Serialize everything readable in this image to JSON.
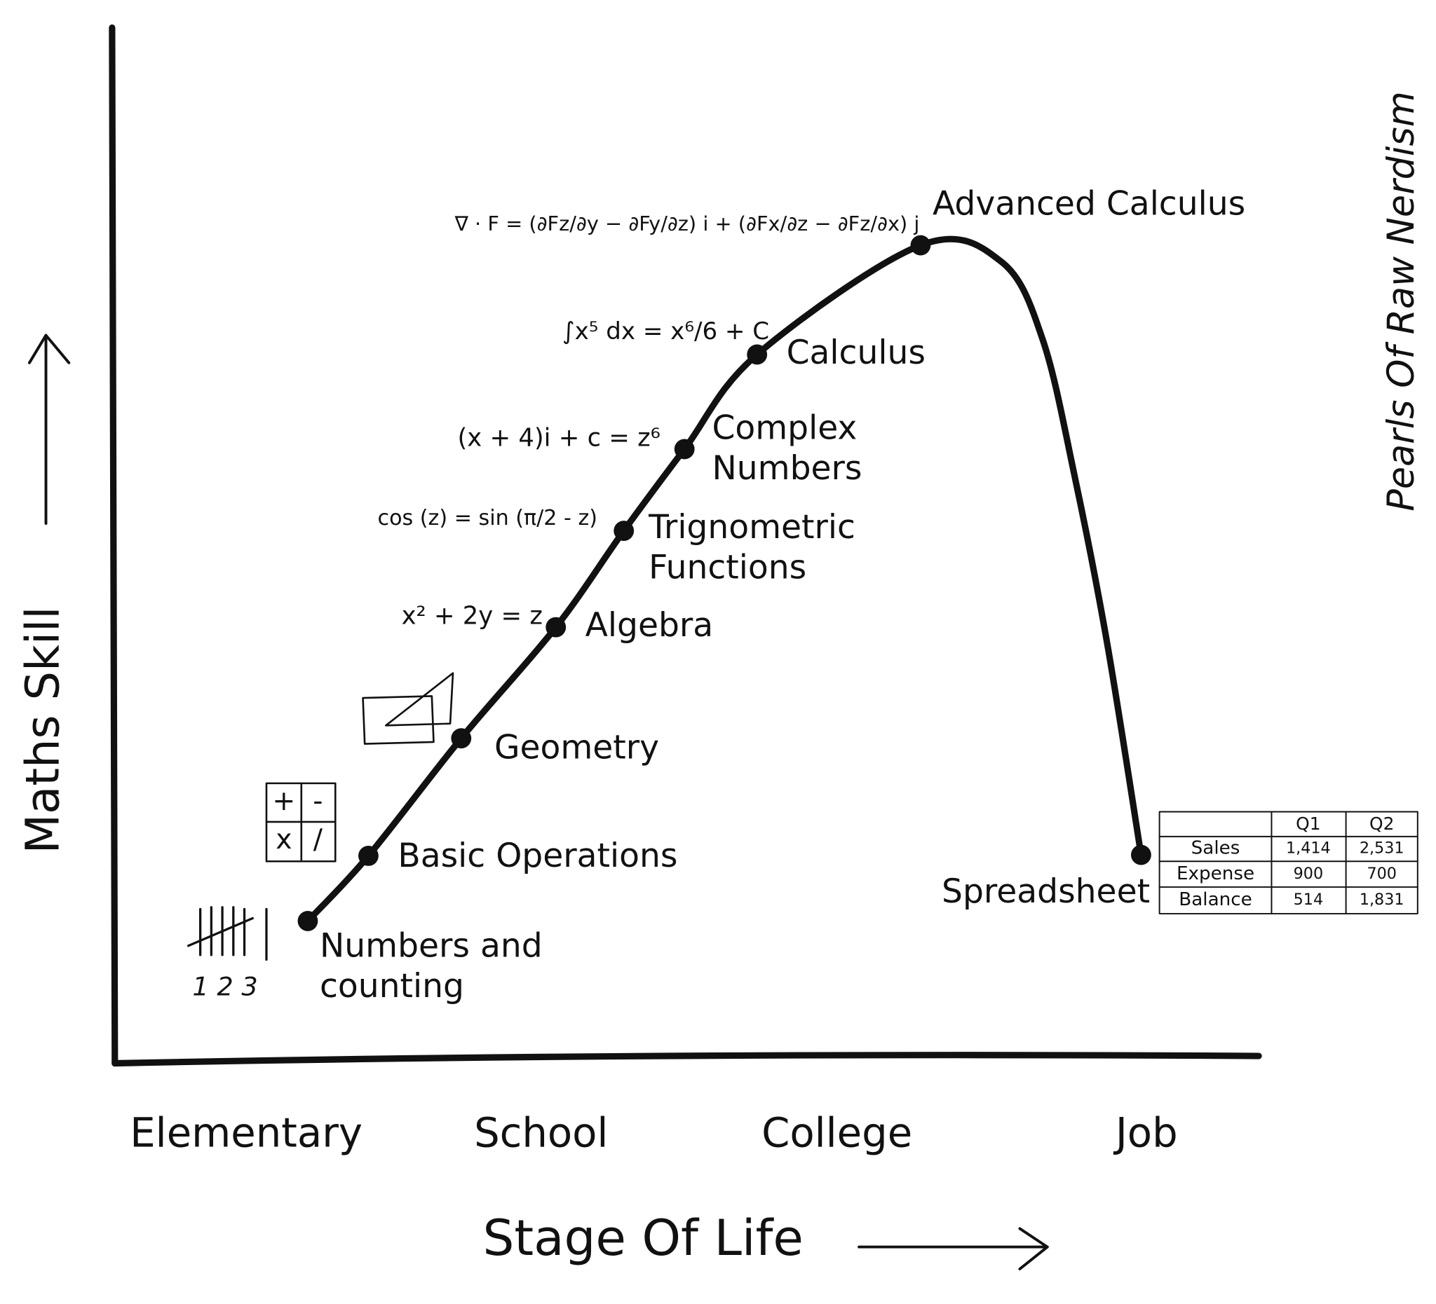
{
  "axes": {
    "y_label": "Maths Skill",
    "x_label": "Stage Of Life"
  },
  "stages": [
    "Elementary",
    "School",
    "College",
    "Job"
  ],
  "milestones": [
    {
      "lines": [
        "Numbers and",
        "counting"
      ]
    },
    {
      "lines": [
        "Basic Operations"
      ]
    },
    {
      "lines": [
        "Geometry"
      ]
    },
    {
      "lines": [
        "Algebra"
      ]
    },
    {
      "lines": [
        "Trignometric",
        "Functions"
      ]
    },
    {
      "lines": [
        "Complex",
        "Numbers"
      ]
    },
    {
      "lines": [
        "Calculus"
      ]
    },
    {
      "lines": [
        "Advanced Calculus"
      ]
    },
    {
      "lines": [
        "Spreadsheet"
      ]
    }
  ],
  "formulas": [
    "∇ · F = (∂Fz/∂y − ∂Fy/∂z) i + (∂Fx/∂z − ∂Fz/∂x) j",
    "∫x⁵ dx = x⁶/6 + C",
    "(x + 4)i + c = z⁶",
    "cos (z) = sin (π/2 - z)",
    "x² + 2y = z"
  ],
  "icons": {
    "tally_caption": "1 2 3",
    "operators": [
      "+",
      "-",
      "x",
      "/"
    ]
  },
  "table": {
    "columns": [
      "Q1",
      "Q2"
    ],
    "rows": [
      {
        "label": "Sales",
        "cells": [
          "1,414",
          "2,531"
        ]
      },
      {
        "label": "Expense",
        "cells": [
          "900",
          "700"
        ]
      },
      {
        "label": "Balance",
        "cells": [
          "514",
          "1,831"
        ]
      }
    ]
  },
  "watermark": "Pearls Of Raw Nerdism"
}
